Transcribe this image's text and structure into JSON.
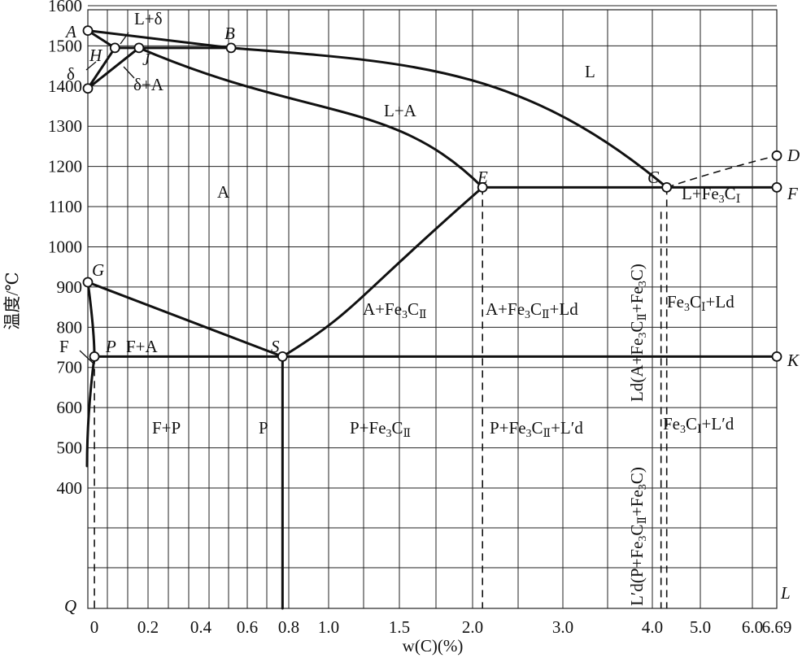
{
  "axis": {
    "x_title": "w(C)(%)",
    "y_title": "温度/℃",
    "x_ticks": [
      {
        "label": "0",
        "w": 0
      },
      {
        "label": "0.2",
        "w": 0.2
      },
      {
        "label": "0.4",
        "w": 0.4
      },
      {
        "label": "0.6",
        "w": 0.6
      },
      {
        "label": "0.8",
        "w": 0.8
      },
      {
        "label": "1.0",
        "w": 1.0
      },
      {
        "label": "1.5",
        "w": 1.5
      },
      {
        "label": "2.0",
        "w": 2.0
      },
      {
        "label": "3.0",
        "w": 3.0
      },
      {
        "label": "4.0",
        "w": 4.0
      },
      {
        "label": "5.0",
        "w": 5.0
      },
      {
        "label": "6.0",
        "w": 6.0
      },
      {
        "label": "6.69",
        "w": 6.69
      }
    ],
    "y_ticks": [
      {
        "label": "1600",
        "t": 1600
      },
      {
        "label": "1500",
        "t": 1500
      },
      {
        "label": "1400",
        "t": 1400
      },
      {
        "label": "1300",
        "t": 1300
      },
      {
        "label": "1200",
        "t": 1200
      },
      {
        "label": "1100",
        "t": 1100
      },
      {
        "label": "1000",
        "t": 1000
      },
      {
        "label": "900",
        "t": 900
      },
      {
        "label": "800",
        "t": 800
      },
      {
        "label": "700",
        "t": 700
      },
      {
        "label": "600",
        "t": 600
      },
      {
        "label": "500",
        "t": 500
      },
      {
        "label": "400",
        "t": 400
      }
    ]
  },
  "points": [
    {
      "id": "A",
      "w": 0,
      "t": 1538
    },
    {
      "id": "H",
      "w": 0.09,
      "t": 1495
    },
    {
      "id": "J",
      "w": 0.17,
      "t": 1495
    },
    {
      "id": "B",
      "w": 0.53,
      "t": 1495
    },
    {
      "id": "N",
      "w": 0,
      "t": 1394
    },
    {
      "id": "D",
      "w": 6.69,
      "t": 1227
    },
    {
      "id": "E",
      "w": 2.11,
      "t": 1148
    },
    {
      "id": "C",
      "w": 4.3,
      "t": 1148
    },
    {
      "id": "F",
      "w": 6.69,
      "t": 1148
    },
    {
      "id": "G",
      "w": 0,
      "t": 912
    },
    {
      "id": "P",
      "w": 0.0218,
      "t": 727
    },
    {
      "id": "S",
      "w": 0.77,
      "t": 727
    },
    {
      "id": "K",
      "w": 6.69,
      "t": 727
    },
    {
      "id": "Q",
      "w": 0,
      "t": 0
    },
    {
      "id": "L",
      "w": 6.69,
      "t": 0
    }
  ],
  "point_labels": [
    "A",
    "H",
    "J",
    "B",
    "D",
    "E",
    "C",
    "F",
    "G",
    "P",
    "S",
    "K",
    "Q",
    "L"
  ],
  "regions": [
    {
      "id": "L",
      "text": "L"
    },
    {
      "id": "LA",
      "text": "L+A"
    },
    {
      "id": "A",
      "text": "A"
    },
    {
      "id": "Ldelta",
      "text": "L+δ"
    },
    {
      "id": "delta",
      "text": "δ"
    },
    {
      "id": "deltaA",
      "text": "δ+A"
    },
    {
      "id": "F",
      "text": "F"
    },
    {
      "id": "FA",
      "text": "F+A"
    },
    {
      "id": "FP",
      "text": "F+P"
    },
    {
      "id": "P",
      "text": "P"
    },
    {
      "id": "AFe3C2",
      "parts": [
        "A+Fe",
        "3",
        "C",
        "Ⅱ"
      ]
    },
    {
      "id": "AFe3C2Ld",
      "parts": [
        "A+Fe",
        "3",
        "C",
        "Ⅱ",
        "+Ld"
      ]
    },
    {
      "id": "Fe3C1Ld",
      "parts": [
        "Fe",
        "3",
        "C",
        "Ⅰ",
        "+Ld"
      ]
    },
    {
      "id": "LFe3C1",
      "parts": [
        "L+Fe",
        "3",
        "C",
        "Ⅰ"
      ]
    },
    {
      "id": "PFe3C2",
      "parts": [
        "P+Fe",
        "3",
        "C",
        "Ⅱ"
      ]
    },
    {
      "id": "PFe3C2Lpd",
      "parts": [
        "P+Fe",
        "3",
        "C",
        "Ⅱ",
        "+L′d"
      ]
    },
    {
      "id": "Fe3C1Lpd",
      "parts": [
        "Fe",
        "3",
        "C",
        "Ⅰ",
        "+L′d"
      ]
    },
    {
      "id": "LdVert",
      "parts": [
        "Ld(A+Fe",
        "3",
        "C",
        "Ⅱ",
        "+Fe",
        "3",
        "C)"
      ]
    },
    {
      "id": "LpdVert",
      "parts": [
        "L′d(P+Fe",
        "3",
        "C",
        "Ⅱ",
        "+Fe",
        "3",
        "C)"
      ]
    }
  ]
}
